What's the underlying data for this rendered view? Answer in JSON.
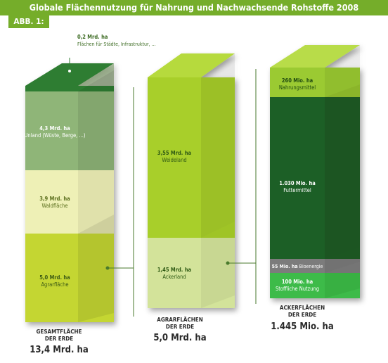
{
  "title": "Globale Flächennutzung für Nahrung und Nachwachsende Rohstoffe 2008",
  "figure_label": "ABB. 1:",
  "colors": {
    "accent": "#75ad2a",
    "unland": "#8fb578",
    "unland_top": "#2f7d32",
    "wald": "#eef0b6",
    "agrar": "#c4d632",
    "weide": "#a8cf2a",
    "acker": "#d3e39a",
    "nahrung": "#9bca32",
    "futter": "#1f5f27",
    "bioenergie": "#7c7c7c",
    "stofflich": "#3dbb48"
  },
  "columns": [
    {
      "caption": [
        "GESAMTFLÄCHE",
        "DER ERDE"
      ],
      "total": "13,4 Mrd. ha",
      "segments": [
        {
          "value": "0,2 Mrd. ha",
          "label": "Flächen für Städte, Infrastruktur, ..."
        },
        {
          "value": "4,3 Mrd. ha",
          "label": "Unland (Wüste, Berge, ...)"
        },
        {
          "value": "3,9 Mrd. ha",
          "label": "Waldfläche"
        },
        {
          "value": "5,0 Mrd. ha",
          "label": "Agrarfläche"
        }
      ]
    },
    {
      "caption": [
        "AGRARFLÄCHEN",
        "DER ERDE"
      ],
      "total": "5,0 Mrd. ha",
      "segments": [
        {
          "value": "3,55 Mrd. ha",
          "label": "Weideland"
        },
        {
          "value": "1,45 Mrd. ha",
          "label": "Ackerland"
        }
      ]
    },
    {
      "caption": [
        "ACKERFLÄCHEN",
        "DER ERDE"
      ],
      "total": "1.445 Mio. ha",
      "segments": [
        {
          "value": "260 Mio. ha",
          "label": "Nahrungsmittel"
        },
        {
          "value": "1.030 Mio. ha",
          "label": "Futtermittel"
        },
        {
          "value": "55 Mio. ha",
          "label": "Bioenergie"
        },
        {
          "value": "100 Mio. ha",
          "label": "Stoffliche Nutzung"
        }
      ]
    }
  ]
}
